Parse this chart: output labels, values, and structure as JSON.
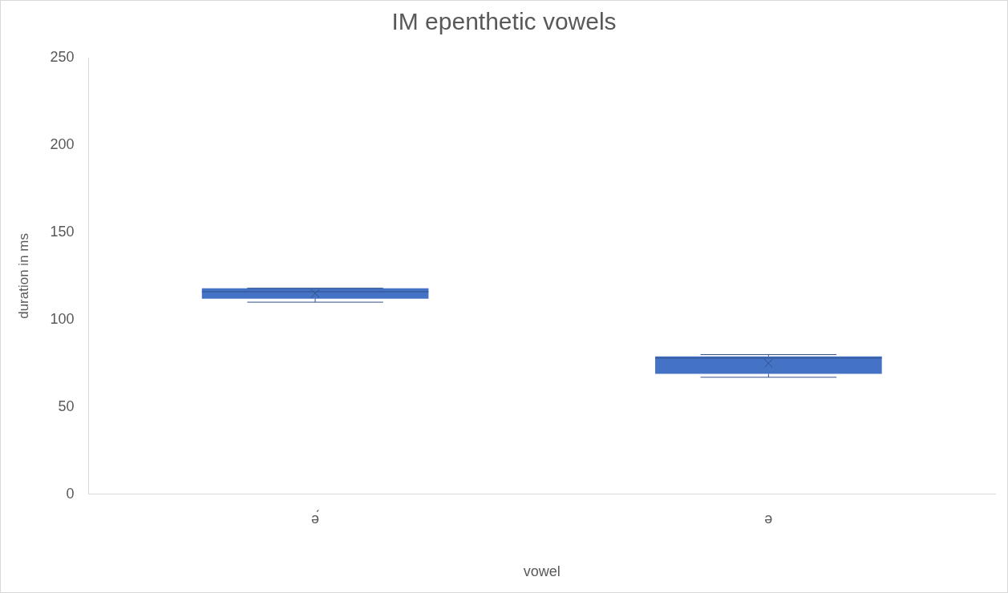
{
  "chart_data": {
    "type": "box",
    "title": "IM epenthetic vowels",
    "xlabel": "vowel",
    "ylabel": "duration in ms",
    "categories": [
      "ә́",
      "ә"
    ],
    "boxes": [
      {
        "low": 110,
        "q1": 112,
        "median": 116,
        "q3": 118,
        "high": 118,
        "mean": 115
      },
      {
        "low": 67,
        "q1": 69,
        "median": 78,
        "q3": 79,
        "high": 80,
        "mean": 75
      }
    ],
    "color": "#4472c4",
    "ylim": [
      0,
      250
    ],
    "yticks": [
      0,
      50,
      100,
      150,
      200,
      250
    ],
    "grid": false,
    "legend": false
  }
}
